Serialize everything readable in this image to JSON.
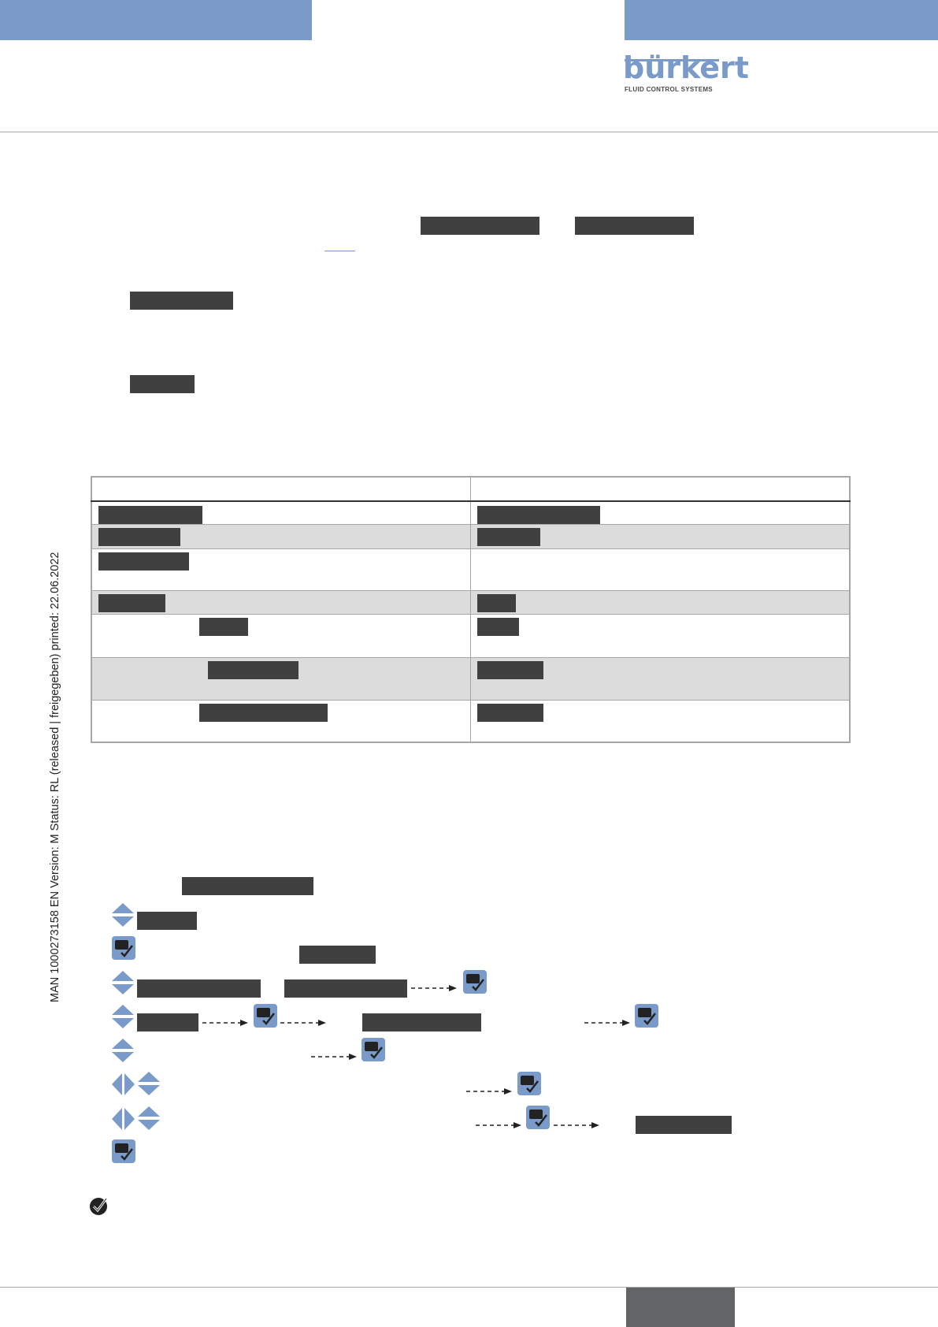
{
  "header": {
    "logo_text": "bürkert",
    "logo_tagline": "FLUID CONTROL SYSTEMS"
  },
  "side_text": "MAN  1000273158  EN  Version: M Status: RL (released | freigegeben)  printed: 22.06.2022",
  "colors": {
    "accent_blue": "#7a9bc9",
    "redaction": "#404040",
    "table_shade": "#dcdcdc",
    "page_box": "#636466"
  },
  "icons": {
    "navigate_updown": "up-down-arrows-icon",
    "navigate_leftright": "left-right-arrows-icon",
    "confirm": "enter-confirm-icon",
    "result": "check-circle-icon",
    "flow": "dashed-arrow-icon"
  }
}
